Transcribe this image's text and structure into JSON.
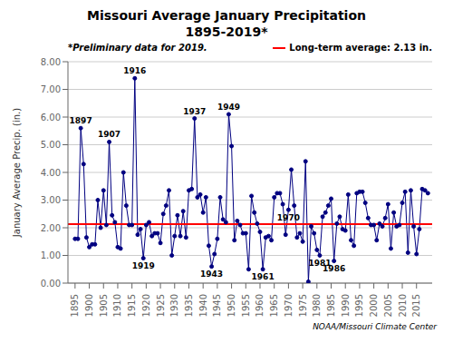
{
  "chart_data": {
    "type": "line",
    "title": "Missouri Average January Precipitation",
    "subtitle": "1895-2019*",
    "y_label": "January Average Precip. (in.)",
    "note": "*Preliminary data for 2019.",
    "source": "NOAA/Missouri Climate Center",
    "x": [
      1895,
      1896,
      1897,
      1898,
      1899,
      1900,
      1901,
      1902,
      1903,
      1904,
      1905,
      1906,
      1907,
      1908,
      1909,
      1910,
      1911,
      1912,
      1913,
      1914,
      1915,
      1916,
      1917,
      1918,
      1919,
      1920,
      1921,
      1922,
      1923,
      1924,
      1925,
      1926,
      1927,
      1928,
      1929,
      1930,
      1931,
      1932,
      1933,
      1934,
      1935,
      1936,
      1937,
      1938,
      1939,
      1940,
      1941,
      1942,
      1943,
      1944,
      1945,
      1946,
      1947,
      1948,
      1949,
      1950,
      1951,
      1952,
      1953,
      1954,
      1955,
      1956,
      1957,
      1958,
      1959,
      1960,
      1961,
      1962,
      1963,
      1964,
      1965,
      1966,
      1967,
      1968,
      1969,
      1970,
      1971,
      1972,
      1973,
      1974,
      1975,
      1976,
      1977,
      1978,
      1979,
      1980,
      1981,
      1982,
      1983,
      1984,
      1985,
      1986,
      1987,
      1988,
      1989,
      1990,
      1991,
      1992,
      1993,
      1994,
      1995,
      1996,
      1997,
      1998,
      1999,
      2000,
      2001,
      2002,
      2003,
      2004,
      2005,
      2006,
      2007,
      2008,
      2009,
      2010,
      2011,
      2012,
      2013,
      2014,
      2015,
      2016,
      2017,
      2018,
      2019
    ],
    "values": [
      1.6,
      1.6,
      5.6,
      4.3,
      1.65,
      1.3,
      1.4,
      1.4,
      3.0,
      2.0,
      3.35,
      2.1,
      5.1,
      2.45,
      2.2,
      1.3,
      1.25,
      4.0,
      2.8,
      2.1,
      2.1,
      7.4,
      1.75,
      1.95,
      0.9,
      2.1,
      2.2,
      1.7,
      1.8,
      1.8,
      1.45,
      2.5,
      2.8,
      3.35,
      1.0,
      1.7,
      2.45,
      1.7,
      2.6,
      1.65,
      3.35,
      3.4,
      5.95,
      3.1,
      3.2,
      2.55,
      3.1,
      1.35,
      0.6,
      1.05,
      1.6,
      3.1,
      2.3,
      2.2,
      6.1,
      4.95,
      1.55,
      2.25,
      2.1,
      1.8,
      1.8,
      0.5,
      3.15,
      2.55,
      2.15,
      1.85,
      0.5,
      1.65,
      1.7,
      1.55,
      3.1,
      3.25,
      3.25,
      2.85,
      1.75,
      2.65,
      4.1,
      2.8,
      1.65,
      1.8,
      1.5,
      4.4,
      0.05,
      2.05,
      1.8,
      1.2,
      1.0,
      2.4,
      2.55,
      2.8,
      3.05,
      0.8,
      2.15,
      2.4,
      1.95,
      1.9,
      3.2,
      1.55,
      1.35,
      3.25,
      3.3,
      3.3,
      2.9,
      2.35,
      2.1,
      2.1,
      1.55,
      2.15,
      2.05,
      2.35,
      2.85,
      1.25,
      2.55,
      2.05,
      2.1,
      2.9,
      3.3,
      1.1,
      3.35,
      2.05,
      1.05,
      1.95,
      3.4,
      3.35,
      3.25
    ],
    "color": "#000080",
    "marker": "circle",
    "xlim": [
      1892.5,
      2020.5
    ],
    "xticks": [
      1895,
      1900,
      1905,
      1910,
      1915,
      1920,
      1925,
      1930,
      1935,
      1940,
      1945,
      1950,
      1955,
      1960,
      1965,
      1970,
      1975,
      1980,
      1985,
      1990,
      1995,
      2000,
      2005,
      2010,
      2015
    ],
    "ylim": [
      0,
      8
    ],
    "yticks": [
      {
        "value": 0,
        "label": "0.00"
      },
      {
        "value": 1,
        "label": "1.00"
      },
      {
        "value": 2,
        "label": "2.00"
      },
      {
        "value": 3,
        "label": "3.00"
      },
      {
        "value": 4,
        "label": "4.00"
      },
      {
        "value": 5,
        "label": "5.00"
      },
      {
        "value": 6,
        "label": "6.00"
      },
      {
        "value": 7,
        "label": "7.00"
      },
      {
        "value": 8,
        "label": "8.00"
      }
    ],
    "grid": true,
    "reference_line": {
      "value": 2.13,
      "label": "Long-term average: 2.13 in.",
      "color": "#FF0000"
    },
    "annotations": [
      {
        "text": "1897",
        "x": 1897,
        "position": "above"
      },
      {
        "text": "1907",
        "x": 1907,
        "position": "above"
      },
      {
        "text": "1916",
        "x": 1916,
        "position": "above"
      },
      {
        "text": "1937",
        "x": 1937,
        "position": "above"
      },
      {
        "text": "1949",
        "x": 1949,
        "position": "above"
      },
      {
        "text": "1919",
        "x": 1919,
        "position": "below"
      },
      {
        "text": "1943",
        "x": 1943,
        "position": "below"
      },
      {
        "text": "1961",
        "x": 1961,
        "position": "below"
      },
      {
        "text": "1970",
        "x": 1970,
        "position": "below"
      },
      {
        "text": "1981",
        "x": 1981,
        "position": "below"
      },
      {
        "text": "1986",
        "x": 1986,
        "position": "below"
      }
    ]
  }
}
